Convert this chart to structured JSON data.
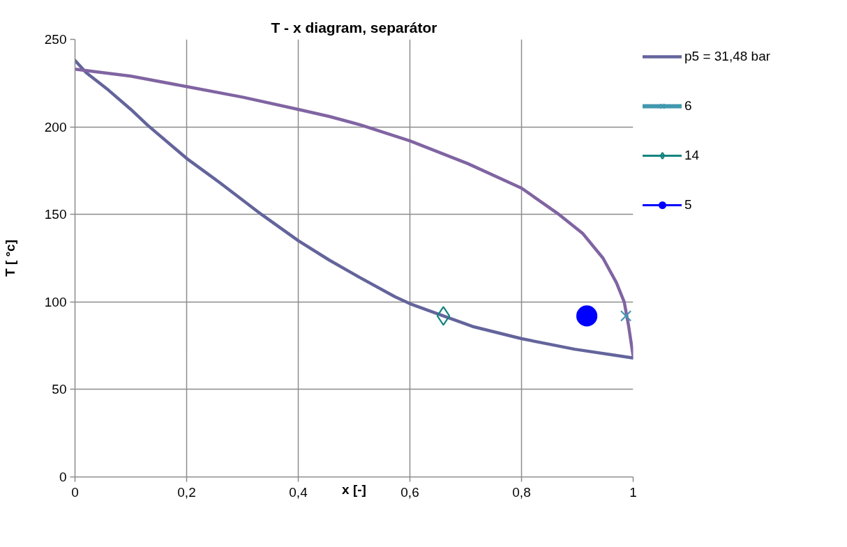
{
  "chart_data": {
    "type": "line",
    "title": "T - x diagram, separátor",
    "xlabel": "x [-]",
    "ylabel": "T [ °c]",
    "xlim": [
      0,
      1
    ],
    "xticks": [
      0,
      {
        "value": 0.2,
        "label": "0,2"
      },
      {
        "value": 0.4,
        "label": "0,4"
      },
      {
        "value": 0.6,
        "label": "0,6"
      },
      {
        "value": 0.8,
        "label": "0,8"
      },
      1
    ],
    "ylim": [
      0,
      250
    ],
    "yticks": [
      0,
      50,
      100,
      150,
      200,
      250
    ],
    "grid": true,
    "legend": "right",
    "line_style": "solid",
    "series": [
      {
        "name": "p5 = 31,48 bar",
        "color": "#64649c",
        "marker": "none",
        "x": [
          0,
          0.02,
          0.06,
          0.1,
          0.13,
          0.2,
          0.26,
          0.334,
          0.4,
          0.455,
          0.51,
          0.573,
          0.6,
          0.66,
          0.712,
          0.8,
          0.895,
          1.0
        ],
        "values": [
          238,
          231,
          221,
          210,
          201,
          182,
          168,
          150,
          135,
          124,
          114,
          103,
          99,
          92,
          86,
          79,
          73,
          68
        ]
      },
      {
        "color": "#8064a2",
        "marker": "none",
        "x": [
          0,
          0.1,
          0.2,
          0.3,
          0.4,
          0.455,
          0.513,
          0.6,
          0.704,
          0.8,
          0.867,
          0.91,
          0.946,
          0.97,
          0.984,
          0.992,
          1.0
        ],
        "values": [
          233,
          229,
          223,
          217,
          210,
          206,
          201,
          192,
          179,
          165,
          150,
          139,
          125,
          111,
          100,
          86,
          69
        ]
      },
      {
        "name": "6",
        "color": "#4198af",
        "marker": "cross",
        "x": [
          0.987
        ],
        "values": [
          92
        ]
      },
      {
        "name": "14",
        "color": "#138480",
        "marker": "diamond",
        "x": [
          0.66
        ],
        "values": [
          92
        ]
      },
      {
        "name": "5",
        "color": "#0000ff",
        "marker": "circle",
        "x": [
          0.917
        ],
        "values": [
          92
        ]
      }
    ]
  }
}
